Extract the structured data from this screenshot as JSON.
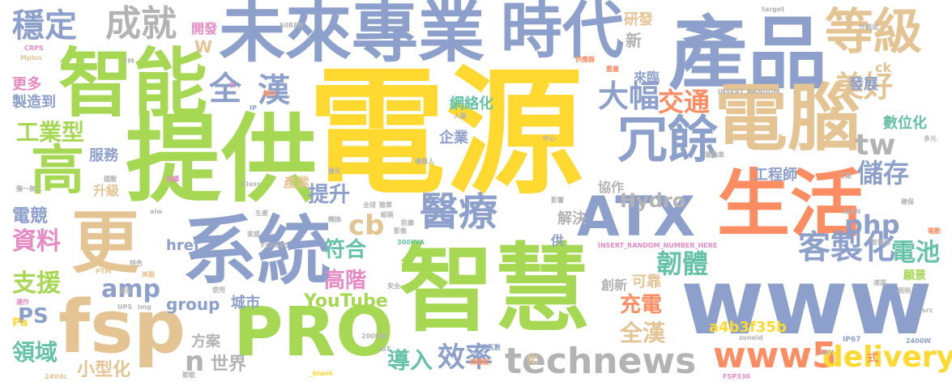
{
  "words": [
    {
      "text": "電源",
      "color": "#ffd92f"
    },
    {
      "text": "提供",
      "color": "#a6d854"
    },
    {
      "text": "產品",
      "color": "#8da0cb"
    },
    {
      "text": "智慧",
      "color": "#a6d854"
    },
    {
      "text": "未來專業",
      "color": "#8da0cb"
    },
    {
      "text": "時代",
      "color": "#8da0cb"
    },
    {
      "text": "智能",
      "color": "#a6d854"
    },
    {
      "text": "系統",
      "color": "#8da0cb"
    },
    {
      "text": "生活",
      "color": "#fc8d62"
    },
    {
      "text": "電腦",
      "color": "#e5c494"
    },
    {
      "text": "www",
      "color": "#8da0cb"
    },
    {
      "text": "PRO",
      "color": "#a6d854"
    },
    {
      "text": "fsp",
      "color": "#e5c494"
    },
    {
      "text": "更",
      "color": "#e5c494"
    },
    {
      "text": "高",
      "color": "#a6d854"
    },
    {
      "text": "ATX",
      "color": "#8da0cb"
    },
    {
      "text": "冗餘",
      "color": "#8da0cb"
    },
    {
      "text": "等級",
      "color": "#e5c494"
    },
    {
      "text": "醫療",
      "color": "#8da0cb"
    },
    {
      "text": "technews",
      "color": "#b3b3b3"
    },
    {
      "text": "www5",
      "color": "#fc8d62"
    },
    {
      "text": "delivery",
      "color": "#ffd92f"
    },
    {
      "text": "客製化",
      "color": "#8da0cb"
    },
    {
      "text": "穩定",
      "color": "#8da0cb"
    },
    {
      "text": "成就",
      "color": "#b3b3b3"
    },
    {
      "text": "全",
      "color": "#8da0cb"
    },
    {
      "text": "漢",
      "color": "#8da0cb"
    },
    {
      "text": "美好",
      "color": "#e5c494"
    },
    {
      "text": "大幅",
      "color": "#8da0cb"
    },
    {
      "text": "交通",
      "color": "#fc8d62"
    },
    {
      "text": "tw",
      "color": "#b3b3b3"
    },
    {
      "text": "儲存",
      "color": "#8da0cb"
    },
    {
      "text": "工業型",
      "color": "#a6d854"
    },
    {
      "text": "資料",
      "color": "#e78ac3"
    },
    {
      "text": "支援",
      "color": "#a6d854"
    },
    {
      "text": "amp",
      "color": "#8da0cb"
    },
    {
      "text": "cb",
      "color": "#e5c494"
    },
    {
      "text": "韌體",
      "color": "#66c2a5"
    },
    {
      "text": "php",
      "color": "#8da0cb"
    },
    {
      "text": "電池",
      "color": "#66c2a5"
    },
    {
      "text": "提升",
      "color": "#8da0cb"
    },
    {
      "text": "符合",
      "color": "#66c2a5"
    },
    {
      "text": "高階",
      "color": "#e78ac3"
    },
    {
      "text": "充電",
      "color": "#fc8d62"
    },
    {
      "text": "全漢",
      "color": "#e5c494"
    },
    {
      "text": "效率",
      "color": "#8da0cb"
    },
    {
      "text": "導入",
      "color": "#66c2a5"
    },
    {
      "text": "領域",
      "color": "#66c2a5"
    },
    {
      "text": "PS",
      "color": "#8da0cb"
    },
    {
      "text": "Hydro",
      "color": "#b3b3b3"
    },
    {
      "text": "YouTube",
      "color": "#a6d854"
    },
    {
      "text": "group",
      "color": "#8da0cb"
    },
    {
      "text": "n",
      "color": "#b3b3b3"
    },
    {
      "text": "電競",
      "color": "#8da0cb"
    },
    {
      "text": "世界",
      "color": "#b3b3b3"
    },
    {
      "text": "小型化",
      "color": "#e5c494"
    },
    {
      "text": "a4b3f35b",
      "color": "#ffd92f"
    },
    {
      "text": "工程師",
      "color": "#8da0cb"
    },
    {
      "text": "製造到",
      "color": "#8da0cb"
    },
    {
      "text": "更多",
      "color": "#e78ac3"
    },
    {
      "text": "服務",
      "color": "#8da0cb"
    },
    {
      "text": "網絡化",
      "color": "#66c2a5"
    },
    {
      "text": "企業",
      "color": "#8da0cb"
    },
    {
      "text": "數位化",
      "color": "#66c2a5"
    },
    {
      "text": "發展",
      "color": "#8da0cb"
    },
    {
      "text": "研發",
      "color": "#e5c494"
    },
    {
      "text": "解決",
      "color": "#b3b3b3"
    },
    {
      "text": "可靠",
      "color": "#e5c494"
    },
    {
      "text": "創新",
      "color": "#b3b3b3"
    },
    {
      "text": "城市",
      "color": "#8da0cb"
    },
    {
      "text": "方案",
      "color": "#b3b3b3"
    },
    {
      "text": "協作",
      "color": "#b3b3b3"
    },
    {
      "text": "href",
      "color": "#8da0cb"
    },
    {
      "text": "產業",
      "color": "#e5c494"
    },
    {
      "text": "升級",
      "color": "#e5c494"
    },
    {
      "text": "開發",
      "color": "#e78ac3"
    },
    {
      "text": "來臨",
      "color": "#8da0cb"
    },
    {
      "text": "新",
      "color": "#b3b3b3"
    },
    {
      "text": "ck",
      "color": "#e5c494"
    },
    {
      "text": "W",
      "color": "#e5c494"
    },
    {
      "text": "Pa",
      "color": "#ffd92f"
    },
    {
      "text": "供",
      "color": "#8da0cb"
    },
    {
      "text": "化",
      "color": "#e5c494"
    },
    {
      "text": "願景",
      "color": "#a6d854"
    },
    {
      "text": "式",
      "color": "#fc8d62"
    },
    {
      "text": "Mplus",
      "color": "#e5c494"
    },
    {
      "text": "CRPS",
      "color": "#e78ac3"
    },
    {
      "text": "Class",
      "color": "#b3b3b3"
    },
    {
      "text": "target",
      "color": "#b3b3b3"
    },
    {
      "text": "INSERT_RANDOM_",
      "color": "#b3b3b3"
    },
    {
      "text": "INSERT_RANDOM_NUMBER_HERE",
      "color": "#e78ac3"
    },
    {
      "text": "FSP330",
      "color": "#e78ac3"
    },
    {
      "text": "FSP600",
      "color": "#b3b3b3"
    },
    {
      "text": "300kVA",
      "color": "#66c2a5"
    },
    {
      "text": "2000W",
      "color": "#b3b3b3"
    },
    {
      "text": "2400W",
      "color": "#8da0cb"
    },
    {
      "text": "zoneid",
      "color": "#b3b3b3"
    },
    {
      "text": "_blank",
      "color": "#ffd92f"
    },
    {
      "text": "24Vdc",
      "color": "#e5c494"
    },
    {
      "text": "IP67",
      "color": "#8da0cb"
    },
    {
      "text": "IoT",
      "color": "#b3b3b3"
    },
    {
      "text": "PTM",
      "color": "#e5c494"
    },
    {
      "text": "UPS",
      "color": "#b3b3b3"
    },
    {
      "text": "img",
      "color": "#b3b3b3"
    },
    {
      "text": "AJAN",
      "color": "#b3b3b3"
    },
    {
      "text": "src",
      "color": "#b3b3b3"
    },
    {
      "text": "aiw",
      "color": "#b3b3b3"
    },
    {
      "text": "6kV",
      "color": "#b3b3b3"
    },
    {
      "text": "50REB",
      "color": "#b3b3b3"
    },
    {
      "text": "FM",
      "color": "#b3b3b3"
    },
    {
      "text": "IP",
      "color": "#8da0cb"
    },
    {
      "text": "中",
      "color": "#e78ac3"
    },
    {
      "text": "外觀或",
      "color": "#b3b3b3"
    },
    {
      "text": "電動",
      "color": "#fc8d62"
    },
    {
      "text": "高瓦數",
      "color": "#8da0cb"
    },
    {
      "text": "機器人",
      "color": "#b3b3b3"
    },
    {
      "text": "人臉",
      "color": "#b3b3b3"
    },
    {
      "text": "供應器",
      "color": "#fc8d62"
    },
    {
      "text": "電動車",
      "color": "#b3b3b3"
    },
    {
      "text": "重量",
      "color": "#fc8d62"
    },
    {
      "text": "獨一無二",
      "color": "#b3b3b3"
    },
    {
      "text": "運作",
      "color": "#e78ac3"
    },
    {
      "text": "特色",
      "color": "#b3b3b3"
    },
    {
      "text": "美觀",
      "color": "#e5c494"
    },
    {
      "text": "搭配",
      "color": "#b3b3b3"
    },
    {
      "text": "家庭",
      "color": "#b3b3b3"
    },
    {
      "text": "生產",
      "color": "#b3b3b3"
    },
    {
      "text": "轉換",
      "color": "#b3b3b3"
    },
    {
      "text": "防塵",
      "color": "#b3b3b3"
    },
    {
      "text": "組裝",
      "color": "#b3b3b3"
    },
    {
      "text": "影像",
      "color": "#b3b3b3"
    },
    {
      "text": "全球",
      "color": "#b3b3b3"
    },
    {
      "text": "簡單",
      "color": "#b3b3b3"
    },
    {
      "text": "影響",
      "color": "#b3b3b3"
    },
    {
      "text": "輸出",
      "color": "#fc8d62"
    },
    {
      "text": "高精度",
      "color": "#fc8d62"
    },
    {
      "text": "中心",
      "color": "#b3b3b3"
    },
    {
      "text": "持續",
      "color": "#e78ac3"
    },
    {
      "text": "穩壓",
      "color": "#b3b3b3"
    },
    {
      "text": "使用",
      "color": "#b3b3b3"
    },
    {
      "text": "照明",
      "color": "#b3b3b3"
    },
    {
      "text": "確保",
      "color": "#b3b3b3"
    },
    {
      "text": "優化",
      "color": "#b3b3b3"
    },
    {
      "text": "工業",
      "color": "#b3b3b3"
    },
    {
      "text": "節能",
      "color": "#b3b3b3"
    },
    {
      "text": "安全",
      "color": "#b3b3b3"
    },
    {
      "text": "智能化",
      "color": "#b3b3b3"
    },
    {
      "text": "速度",
      "color": "#b3b3b3"
    },
    {
      "text": "多元",
      "color": "#b3b3b3"
    }
  ]
}
